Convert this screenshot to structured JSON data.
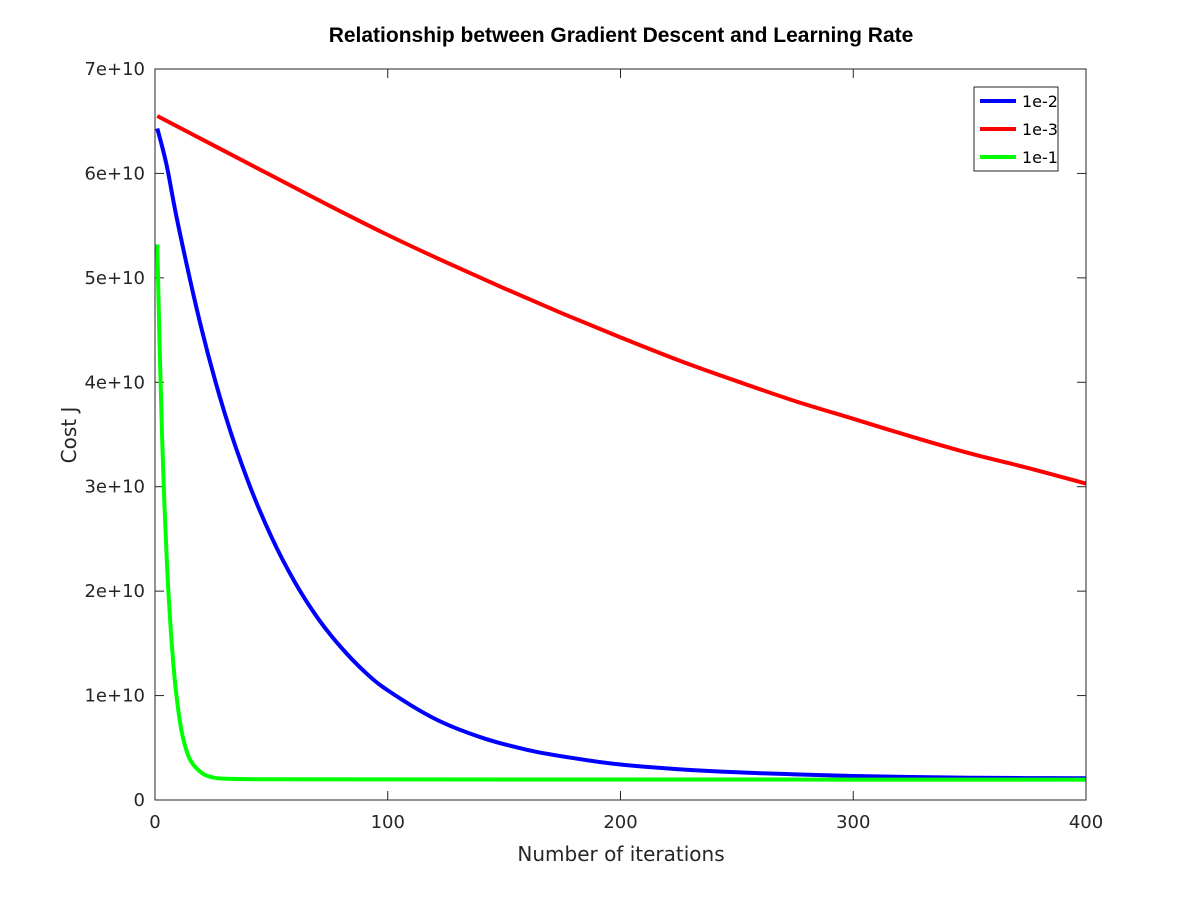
{
  "chart_data": {
    "type": "line",
    "title": "Relationship between Gradient Descent and Learning Rate",
    "xlabel": "Number of iterations",
    "ylabel": "Cost J",
    "xlim": [
      0,
      400
    ],
    "ylim": [
      0,
      70000000000
    ],
    "x_ticks": [
      0,
      100,
      200,
      300,
      400
    ],
    "x_tick_labels": [
      "0",
      "100",
      "200",
      "300",
      "400"
    ],
    "y_ticks": [
      0,
      10000000000,
      20000000000,
      30000000000,
      40000000000,
      50000000000,
      60000000000,
      70000000000
    ],
    "y_tick_labels": [
      "0",
      "1e+10",
      "2e+10",
      "3e+10",
      "4e+10",
      "5e+10",
      "6e+10",
      "7e+10"
    ],
    "grid": false,
    "legend_position": "top-right",
    "series": [
      {
        "name": "1e-2",
        "color": "#0000ff",
        "x": [
          1,
          5,
          10,
          20,
          30,
          40,
          50,
          60,
          70,
          80,
          90,
          100,
          120,
          140,
          160,
          180,
          200,
          225,
          250,
          275,
          300,
          325,
          350,
          375,
          400
        ],
        "y": [
          64300000000.0,
          60800000000.0,
          55000000000.0,
          45100000000.0,
          37000000000.0,
          30500000000.0,
          25200000000.0,
          20900000000.0,
          17400000000.0,
          14600000000.0,
          12300000000.0,
          10500000000.0,
          7800000000.0,
          6000000000.0,
          4800000000.0,
          4000000000.0,
          3400000000.0,
          2950000000.0,
          2650000000.0,
          2450000000.0,
          2300000000.0,
          2200000000.0,
          2140000000.0,
          2100000000.0,
          2080000000.0
        ]
      },
      {
        "name": "1e-3",
        "color": "#ff0000",
        "x": [
          1,
          25,
          50,
          75,
          100,
          125,
          150,
          175,
          200,
          225,
          250,
          275,
          300,
          325,
          350,
          375,
          400
        ],
        "y": [
          65500000000.0,
          62700000000.0,
          59800000000.0,
          56900000000.0,
          54100000000.0,
          51500000000.0,
          49000000000.0,
          46600000000.0,
          44300000000.0,
          42100000000.0,
          40100000000.0,
          38200000000.0,
          36500000000.0,
          34800000000.0,
          33200000000.0,
          31800000000.0,
          30300000000.0
        ]
      },
      {
        "name": "1e-1",
        "color": "#00ff00",
        "x": [
          1,
          2,
          3,
          4,
          5,
          6,
          8,
          10,
          12,
          15,
          20,
          25,
          30,
          40,
          50,
          100,
          200,
          300,
          400
        ],
        "y": [
          53200000000.0,
          43200000000.0,
          35000000000.0,
          28600000000.0,
          23400000000.0,
          19000000000.0,
          12700000000.0,
          8600000000.0,
          6000000000.0,
          3900000000.0,
          2600000000.0,
          2150000000.0,
          2050000000.0,
          2000000000.0,
          1980000000.0,
          1970000000.0,
          1960000000.0,
          1950000000.0,
          1950000000.0
        ]
      }
    ]
  }
}
